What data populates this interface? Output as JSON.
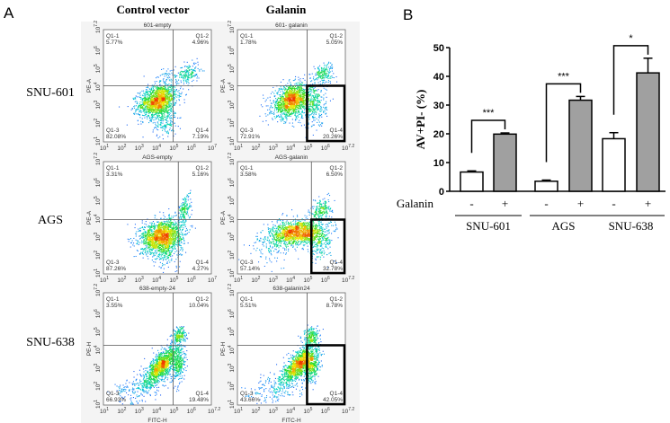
{
  "panel_a": {
    "label": "A",
    "col_headers": [
      "Control vector",
      "Galanin"
    ],
    "row_labels": [
      "SNU-601",
      "AGS",
      "SNU-638"
    ],
    "tick_base": "10",
    "y_tick_exponents": [
      "1",
      "2",
      "3",
      "4",
      "5",
      "6",
      "7.2"
    ],
    "plots": [
      {
        "title": "601-empty",
        "y_label": "PE-A",
        "x_label": "",
        "x_tick_exponents": [
          "1",
          "2",
          "3",
          "4",
          "5",
          "6",
          "7"
        ],
        "gate_log": [
          5.0,
          4.1
        ],
        "highlight_q4": false,
        "quadrants": {
          "q1": [
            "Q1-1",
            "5.77%"
          ],
          "q2": [
            "Q1-2",
            "4.96%"
          ],
          "q3": [
            "Q1-3",
            "82.08%"
          ],
          "q4": [
            "Q1-4",
            "7.19%"
          ]
        }
      },
      {
        "title": "601- galanin",
        "y_label": "PE-A",
        "x_label": "",
        "x_tick_exponents": [
          "1",
          "2",
          "3",
          "4",
          "5",
          "6",
          "7.2"
        ],
        "gate_log": [
          5.0,
          4.1
        ],
        "highlight_q4": true,
        "quadrants": {
          "q1": [
            "Q1-1",
            "1.78%"
          ],
          "q2": [
            "Q1-2",
            "5.05%"
          ],
          "q3": [
            "Q1-3",
            "72.91%"
          ],
          "q4": [
            "Q1-4",
            "20.26%"
          ]
        }
      },
      {
        "title": "AGS-empty",
        "y_label": "PE-A",
        "x_label": "",
        "x_tick_exponents": [
          "1",
          "2",
          "3",
          "4",
          "5",
          "6",
          "7"
        ],
        "gate_log": [
          5.3,
          4.0
        ],
        "highlight_q4": false,
        "quadrants": {
          "q1": [
            "Q1-1",
            "3.31%"
          ],
          "q2": [
            "Q1-2",
            "5.16%"
          ],
          "q3": [
            "Q1-3",
            "87.26%"
          ],
          "q4": [
            "Q1-4",
            "4.27%"
          ]
        }
      },
      {
        "title": "AGS-galanin",
        "y_label": "PE-A",
        "x_label": "",
        "x_tick_exponents": [
          "1",
          "2",
          "3",
          "4",
          "5",
          "6",
          "7.2"
        ],
        "gate_log": [
          5.25,
          4.0
        ],
        "highlight_q4": true,
        "quadrants": {
          "q1": [
            "Q1-1",
            "3.58%"
          ],
          "q2": [
            "Q1-2",
            "6.50%"
          ],
          "q3": [
            "Q1-3",
            "57.14%"
          ],
          "q4": [
            "Q1-4",
            "32.78%"
          ]
        }
      },
      {
        "title": "638-empty-24",
        "y_label": "PE-H",
        "x_label": "FITC-H",
        "x_tick_exponents": [
          "1",
          "2",
          "3",
          "4",
          "5",
          "6",
          "7.2"
        ],
        "gate_log": [
          5.0,
          4.3
        ],
        "highlight_q4": false,
        "quadrants": {
          "q1": [
            "Q1-1",
            "3.55%"
          ],
          "q2": [
            "Q1-2",
            "10.04%"
          ],
          "q3": [
            "Q1-3",
            "66.93%"
          ],
          "q4": [
            "Q1-4",
            "19.48%"
          ]
        }
      },
      {
        "title": "638-galanin24",
        "y_label": "PE-H",
        "x_label": "FITC-H",
        "x_tick_exponents": [
          "1",
          "2",
          "3",
          "4",
          "5",
          "6",
          "7.2"
        ],
        "gate_log": [
          5.0,
          4.3
        ],
        "highlight_q4": true,
        "quadrants": {
          "q1": [
            "Q1-1",
            "5.51%"
          ],
          "q2": [
            "Q1-2",
            "8.78%"
          ],
          "q3": [
            "Q1-3",
            "43.66%"
          ],
          "q4": [
            "Q1-4",
            "42.05%"
          ]
        }
      }
    ]
  },
  "chart_data": {
    "type": "bar",
    "panel_label": "B",
    "title": "",
    "xlabel": "",
    "ylabel": "AV+PI- (%)",
    "ylim": [
      0,
      50
    ],
    "yticks": [
      "0",
      "10",
      "20",
      "30",
      "40",
      "50"
    ],
    "grid": false,
    "treatment_label": "Galanin",
    "groups": [
      "SNU-601",
      "AGS",
      "SNU-638"
    ],
    "categories": [
      "-",
      "+",
      "-",
      "+",
      "-",
      "+"
    ],
    "values": [
      6.7,
      19.9,
      3.5,
      31.7,
      18.3,
      41.2
    ],
    "errors": [
      0.4,
      0.4,
      0.4,
      1.3,
      2.1,
      5.1
    ],
    "bar_colors": [
      "#ffffff",
      "#a0a0a0",
      "#ffffff",
      "#a0a0a0",
      "#ffffff",
      "#a0a0a0"
    ],
    "significance": [
      "***",
      "***",
      "*"
    ]
  }
}
